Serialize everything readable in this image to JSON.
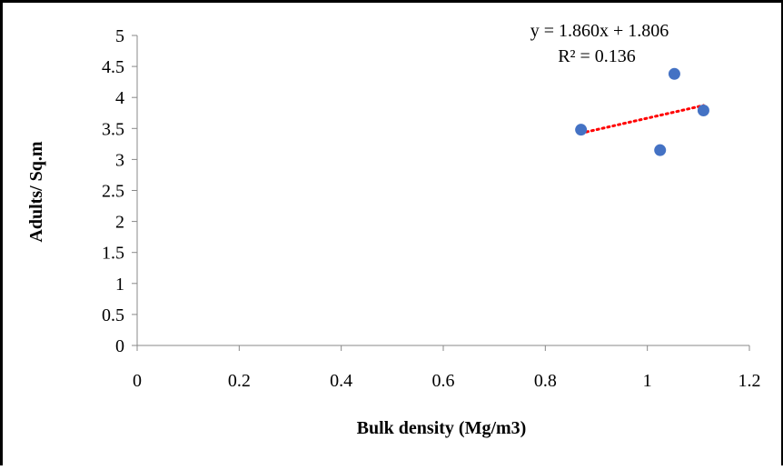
{
  "chart_data": {
    "type": "scatter",
    "title": "",
    "xlabel": "Bulk density (Mg/m3)",
    "ylabel": "Adults/ Sq.m",
    "xlim": [
      0,
      1.2
    ],
    "ylim": [
      0,
      5
    ],
    "x_ticks": [
      "0",
      "0.2",
      "0.4",
      "0.6",
      "0.8",
      "1",
      "1.2"
    ],
    "y_ticks": [
      "0",
      "0.5",
      "1",
      "1.5",
      "2",
      "2.5",
      "3",
      "3.5",
      "4",
      "4.5",
      "5"
    ],
    "series": [
      {
        "color": "#4472C4",
        "points": [
          {
            "x": 0.87,
            "y": 3.48
          },
          {
            "x": 1.025,
            "y": 3.15
          },
          {
            "x": 1.053,
            "y": 4.38
          },
          {
            "x": 1.11,
            "y": 3.79
          }
        ]
      }
    ],
    "trendline": {
      "type": "linear",
      "slope": 1.86,
      "intercept": 1.806,
      "r_squared": 0.136,
      "x_range": [
        0.87,
        1.11
      ],
      "color": "#FF0000",
      "style": "dotted",
      "equation_label": "y = 1.860x + 1.806",
      "r2_label": "R² = 0.136"
    },
    "grid": false,
    "legend": "none"
  }
}
